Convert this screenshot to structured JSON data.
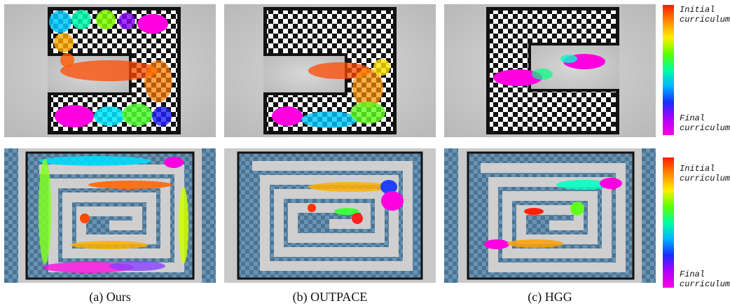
{
  "figure": {
    "colorbar": {
      "top_label": "Initial\ncurriculum",
      "bottom_label": "Final\ncurriculum",
      "gradient": [
        "#ff1a00",
        "#ff8a00",
        "#ffee00",
        "#5cff00",
        "#00ffa0",
        "#00b4ff",
        "#1a2cff",
        "#b000ff",
        "#ff00e0"
      ]
    },
    "captions": [
      "(a) Ours",
      "(b) OUTPACE",
      "(c) HGG"
    ],
    "colors": {
      "bg_gray": "#c8c8c8",
      "checker_dark": "#111111",
      "checker_blue": "#4b7493",
      "corridor": "#d2d2d2",
      "red_cluster": "#ff3300"
    }
  }
}
